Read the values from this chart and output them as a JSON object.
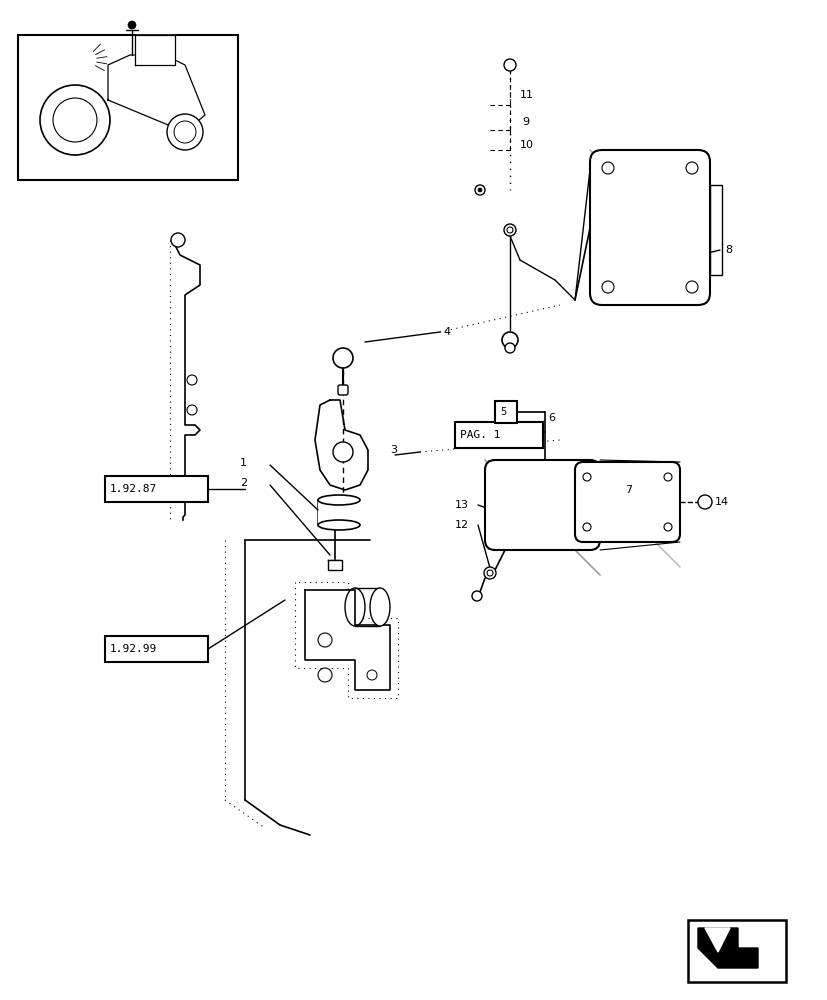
{
  "bg_color": "#ffffff",
  "fig_width": 8.28,
  "fig_height": 10.0
}
